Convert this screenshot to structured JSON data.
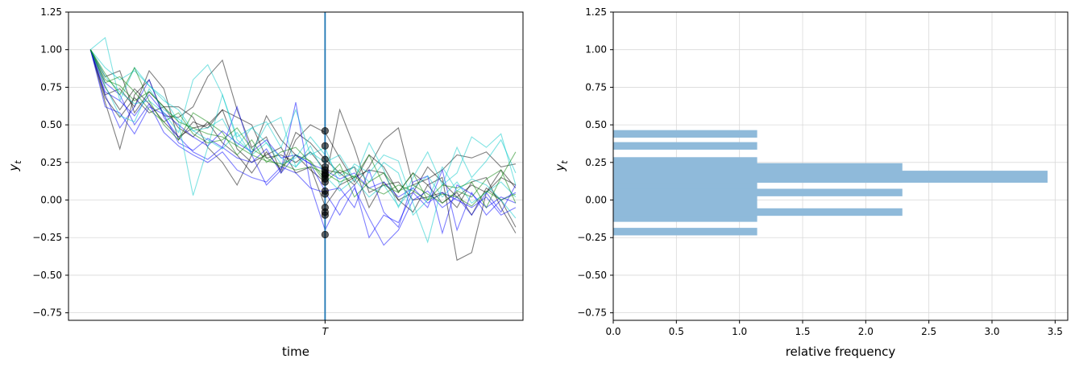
{
  "chart_data": [
    {
      "type": "line",
      "xlabel": "time",
      "ylabel": "y_t",
      "ylim": [
        -0.8,
        1.25
      ],
      "yticks": [
        -0.75,
        -0.5,
        -0.25,
        0.0,
        0.25,
        0.5,
        0.75,
        1.0,
        1.25
      ],
      "ytick_labels": [
        "−0.75",
        "−0.50",
        "−0.25",
        "0.00",
        "0.25",
        "0.50",
        "0.75",
        "1.00",
        "1.25"
      ],
      "xlim": [
        -1.5,
        29.5
      ],
      "xtick_labels": [
        "T"
      ],
      "T": 16,
      "grid": "horizontal",
      "vline_color": "#1f77b4",
      "series_colors": [
        "#000000",
        "#0000ff",
        "#00c8c8",
        "#008000"
      ],
      "series": [
        {
          "color": "#000000",
          "values": [
            1.0,
            0.65,
            0.34,
            0.7,
            0.8,
            0.56,
            0.55,
            0.62,
            0.82,
            0.93,
            0.6,
            0.35,
            0.42,
            0.18,
            0.4,
            0.5,
            0.45,
            0.28,
            0.12,
            0.3,
            0.22,
            0.05,
            0.18,
            0.1,
            0.15,
            -0.4,
            -0.35,
            0.05,
            0.2,
            0.08
          ]
        },
        {
          "color": "#000000",
          "values": [
            1.0,
            0.7,
            0.74,
            0.62,
            0.86,
            0.74,
            0.4,
            0.52,
            0.48,
            0.6,
            0.55,
            0.5,
            0.28,
            0.3,
            0.25,
            0.32,
            0.2,
            0.18,
            0.1,
            0.22,
            0.4,
            0.48,
            0.1,
            0.14,
            0.2,
            0.3,
            0.28,
            0.32,
            0.22,
            0.24
          ]
        },
        {
          "color": "#000000",
          "values": [
            1.0,
            0.82,
            0.86,
            0.58,
            0.72,
            0.62,
            0.62,
            0.55,
            0.35,
            0.25,
            0.1,
            0.3,
            0.56,
            0.4,
            0.3,
            0.2,
            0.12,
            0.6,
            0.35,
            0.05,
            0.1,
            0.12,
            0.0,
            0.02,
            0.05,
            -0.05,
            0.12,
            0.15,
            -0.05,
            -0.22
          ]
        },
        {
          "color": "#000000",
          "values": [
            1.0,
            0.75,
            0.6,
            0.74,
            0.64,
            0.52,
            0.42,
            0.48,
            0.5,
            0.6,
            0.34,
            0.25,
            0.3,
            0.35,
            0.18,
            0.22,
            -0.04,
            0.1,
            0.15,
            0.2,
            0.18,
            0.0,
            0.05,
            0.22,
            0.12,
            0.02,
            0.1,
            0.05,
            0.15,
            0.1
          ]
        },
        {
          "color": "#000000",
          "values": [
            1.0,
            0.68,
            0.55,
            0.68,
            0.58,
            0.62,
            0.48,
            0.42,
            0.52,
            0.38,
            0.3,
            0.18,
            0.32,
            0.2,
            0.45,
            0.38,
            0.27,
            0.18,
            0.22,
            -0.05,
            0.12,
            0.0,
            -0.08,
            0.1,
            -0.02,
            0.05,
            -0.1,
            0.08,
            0.0,
            -0.18
          ]
        },
        {
          "color": "#0000ff",
          "values": [
            1.0,
            0.7,
            0.48,
            0.62,
            0.8,
            0.55,
            0.42,
            0.32,
            0.27,
            0.35,
            0.62,
            0.3,
            0.1,
            0.2,
            0.65,
            0.1,
            -0.2,
            0.0,
            0.1,
            -0.25,
            -0.1,
            -0.15,
            0.05,
            -0.05,
            0.2,
            -0.2,
            0.05,
            -0.1,
            0.0,
            0.05
          ]
        },
        {
          "color": "#0000ff",
          "values": [
            1.0,
            0.78,
            0.7,
            0.5,
            0.64,
            0.45,
            0.36,
            0.3,
            0.25,
            0.32,
            0.2,
            0.15,
            0.12,
            0.22,
            0.18,
            0.08,
            0.05,
            -0.1,
            0.08,
            -0.12,
            -0.3,
            -0.2,
            0.0,
            0.06,
            -0.05,
            0.02,
            -0.1,
            0.05,
            -0.08,
            0.1
          ]
        },
        {
          "color": "#0000ff",
          "values": [
            1.0,
            0.62,
            0.58,
            0.44,
            0.62,
            0.57,
            0.38,
            0.33,
            0.41,
            0.35,
            0.28,
            0.25,
            0.34,
            0.18,
            0.3,
            0.24,
            0.06,
            0.08,
            -0.05,
            0.2,
            -0.08,
            -0.18,
            0.12,
            0.16,
            -0.22,
            0.1,
            0.04,
            -0.05,
            0.02,
            -0.02
          ]
        },
        {
          "color": "#0000ff",
          "values": [
            1.0,
            0.72,
            0.66,
            0.56,
            0.7,
            0.58,
            0.5,
            0.42,
            0.36,
            0.46,
            0.38,
            0.32,
            0.4,
            0.28,
            0.3,
            0.24,
            0.2,
            0.14,
            0.18,
            0.08,
            0.12,
            0.02,
            0.08,
            -0.02,
            0.05,
            0.0,
            -0.05,
            0.02,
            -0.1,
            -0.05
          ]
        },
        {
          "color": "#00c8c8",
          "values": [
            1.0,
            1.08,
            0.66,
            0.88,
            0.76,
            0.68,
            0.52,
            0.03,
            0.35,
            0.7,
            0.4,
            0.32,
            0.5,
            0.55,
            0.22,
            0.32,
            0.25,
            0.3,
            0.14,
            0.38,
            0.2,
            -0.05,
            0.15,
            0.32,
            0.1,
            0.18,
            0.42,
            0.35,
            0.44,
            0.1
          ]
        },
        {
          "color": "#00c8c8",
          "values": [
            1.0,
            0.82,
            0.72,
            0.64,
            0.66,
            0.58,
            0.45,
            0.8,
            0.9,
            0.7,
            0.42,
            0.48,
            0.52,
            0.35,
            0.6,
            0.3,
            0.35,
            0.1,
            0.24,
            0.18,
            0.3,
            0.26,
            -0.02,
            -0.28,
            0.1,
            0.35,
            0.15,
            0.26,
            0.4,
            0.18
          ]
        },
        {
          "color": "#00c8c8",
          "values": [
            1.0,
            0.88,
            0.8,
            0.86,
            0.76,
            0.66,
            0.6,
            0.46,
            0.48,
            0.54,
            0.36,
            0.48,
            0.38,
            0.24,
            0.28,
            0.42,
            0.3,
            0.16,
            0.22,
            0.12,
            0.25,
            0.18,
            -0.1,
            0.0,
            0.22,
            0.06,
            0.14,
            0.1,
            0.0,
            -0.12
          ]
        },
        {
          "color": "#00c8c8",
          "values": [
            1.0,
            0.76,
            0.56,
            0.52,
            0.74,
            0.6,
            0.54,
            0.46,
            0.4,
            0.34,
            0.45,
            0.3,
            0.38,
            0.28,
            0.22,
            0.36,
            0.16,
            0.06,
            0.14,
            0.02,
            0.1,
            -0.04,
            0.08,
            0.16,
            0.02,
            0.12,
            -0.02,
            0.05,
            0.12,
            0.02
          ]
        },
        {
          "color": "#008000",
          "values": [
            1.0,
            0.84,
            0.7,
            0.88,
            0.66,
            0.5,
            0.4,
            0.58,
            0.52,
            0.45,
            0.3,
            0.4,
            0.25,
            0.32,
            0.35,
            0.25,
            0.12,
            0.2,
            0.15,
            0.3,
            0.1,
            0.05,
            0.18,
            0.0,
            0.1,
            0.08,
            0.12,
            -0.05,
            0.15,
            0.32
          ]
        },
        {
          "color": "#008000",
          "values": [
            1.0,
            0.78,
            0.82,
            0.72,
            0.6,
            0.52,
            0.58,
            0.44,
            0.38,
            0.4,
            0.48,
            0.34,
            0.28,
            0.22,
            0.3,
            0.26,
            0.14,
            0.24,
            0.02,
            0.12,
            0.18,
            0.06,
            0.1,
            0.04,
            -0.02,
            0.06,
            0.02,
            0.14,
            0.2,
            -0.02
          ]
        },
        {
          "color": "#008000",
          "values": [
            1.0,
            0.8,
            0.76,
            0.66,
            0.72,
            0.62,
            0.52,
            0.48,
            0.44,
            0.42,
            0.36,
            0.3,
            0.26,
            0.24,
            0.2,
            0.22,
            0.18,
            0.12,
            0.16,
            0.08,
            0.04,
            0.1,
            0.06,
            0.0,
            0.04,
            0.02,
            -0.04,
            0.06,
            0.0,
            0.04
          ]
        }
      ],
      "points_at_T": [
        0.46,
        0.36,
        0.27,
        0.22,
        0.2,
        0.18,
        0.17,
        0.16,
        0.14,
        0.12,
        0.06,
        0.04,
        -0.05,
        -0.08,
        -0.1,
        -0.23
      ]
    },
    {
      "type": "bar",
      "orientation": "horizontal",
      "xlabel": "relative frequency",
      "ylabel": "y_t",
      "ylim": [
        -0.8,
        1.25
      ],
      "xlim": [
        0.0,
        3.6
      ],
      "yticks": [
        -0.75,
        -0.5,
        -0.25,
        0.0,
        0.25,
        0.5,
        0.75,
        1.0,
        1.25
      ],
      "ytick_labels": [
        "−0.75",
        "−0.50",
        "−0.25",
        "0.00",
        "0.25",
        "0.50",
        "0.75",
        "1.00",
        "1.25"
      ],
      "xticks": [
        0.0,
        0.5,
        1.0,
        1.5,
        2.0,
        2.5,
        3.0,
        3.5
      ],
      "xtick_labels": [
        "0.0",
        "0.5",
        "1.0",
        "1.5",
        "2.0",
        "2.5",
        "3.0",
        "3.5"
      ],
      "grid": "both",
      "bar_color": "#8fbada",
      "bins": [
        {
          "y0": -0.235,
          "y1": -0.185,
          "value": 1.14
        },
        {
          "y0": -0.145,
          "y1": 0.285,
          "value": 1.14
        },
        {
          "y0": -0.105,
          "y1": -0.055,
          "value": 2.29
        },
        {
          "y0": 0.025,
          "y1": 0.075,
          "value": 2.29
        },
        {
          "y0": 0.115,
          "y1": 0.195,
          "value": 3.44
        },
        {
          "y0": 0.115,
          "y1": 0.245,
          "value": 2.29
        },
        {
          "y0": 0.335,
          "y1": 0.385,
          "value": 1.14
        },
        {
          "y0": 0.415,
          "y1": 0.465,
          "value": 1.14
        }
      ]
    }
  ]
}
